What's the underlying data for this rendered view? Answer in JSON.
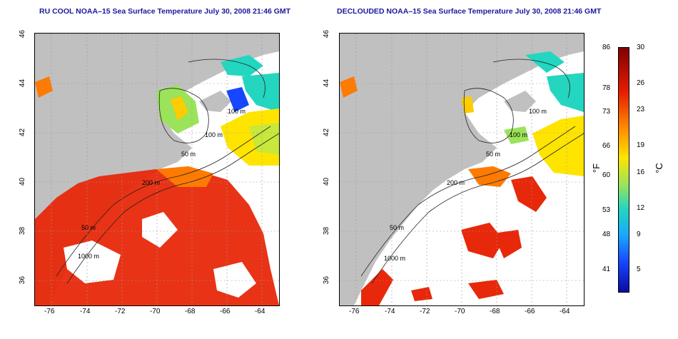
{
  "left_panel": {
    "title": "RU COOL NOAA–15 Sea Surface Temperature July 30, 2008 21:46 GMT",
    "contour_labels": [
      "100 m",
      "100 m",
      "50 m",
      "200 m",
      "50 m",
      "1000 m"
    ]
  },
  "right_panel": {
    "title": "DECLOUDED NOAA–15 Sea Surface Temperature July 30, 2008 21:46 GMT",
    "contour_labels": [
      "100 m",
      "100 m",
      "50 m",
      "200 m",
      "50 m",
      "1000 m"
    ]
  },
  "x_ticks": [
    "-76",
    "-74",
    "-72",
    "-70",
    "-68",
    "-66",
    "-64"
  ],
  "y_ticks": [
    "46",
    "44",
    "42",
    "40",
    "38",
    "36"
  ],
  "colorbar": {
    "fahrenheit_ticks": [
      "86",
      "78",
      "73",
      "66",
      "60",
      "53",
      "48",
      "41"
    ],
    "celsius_ticks": [
      "30",
      "26",
      "23",
      "19",
      "16",
      "12",
      "9",
      "5"
    ],
    "fahrenheit_unit": "°F",
    "celsius_unit": "°C",
    "colors": [
      "#800000",
      "#e61c00",
      "#ff8c00",
      "#ffe400",
      "#9be35a",
      "#23d6c0",
      "#1aa6ff",
      "#1646ff",
      "#0a0aa0"
    ]
  }
}
